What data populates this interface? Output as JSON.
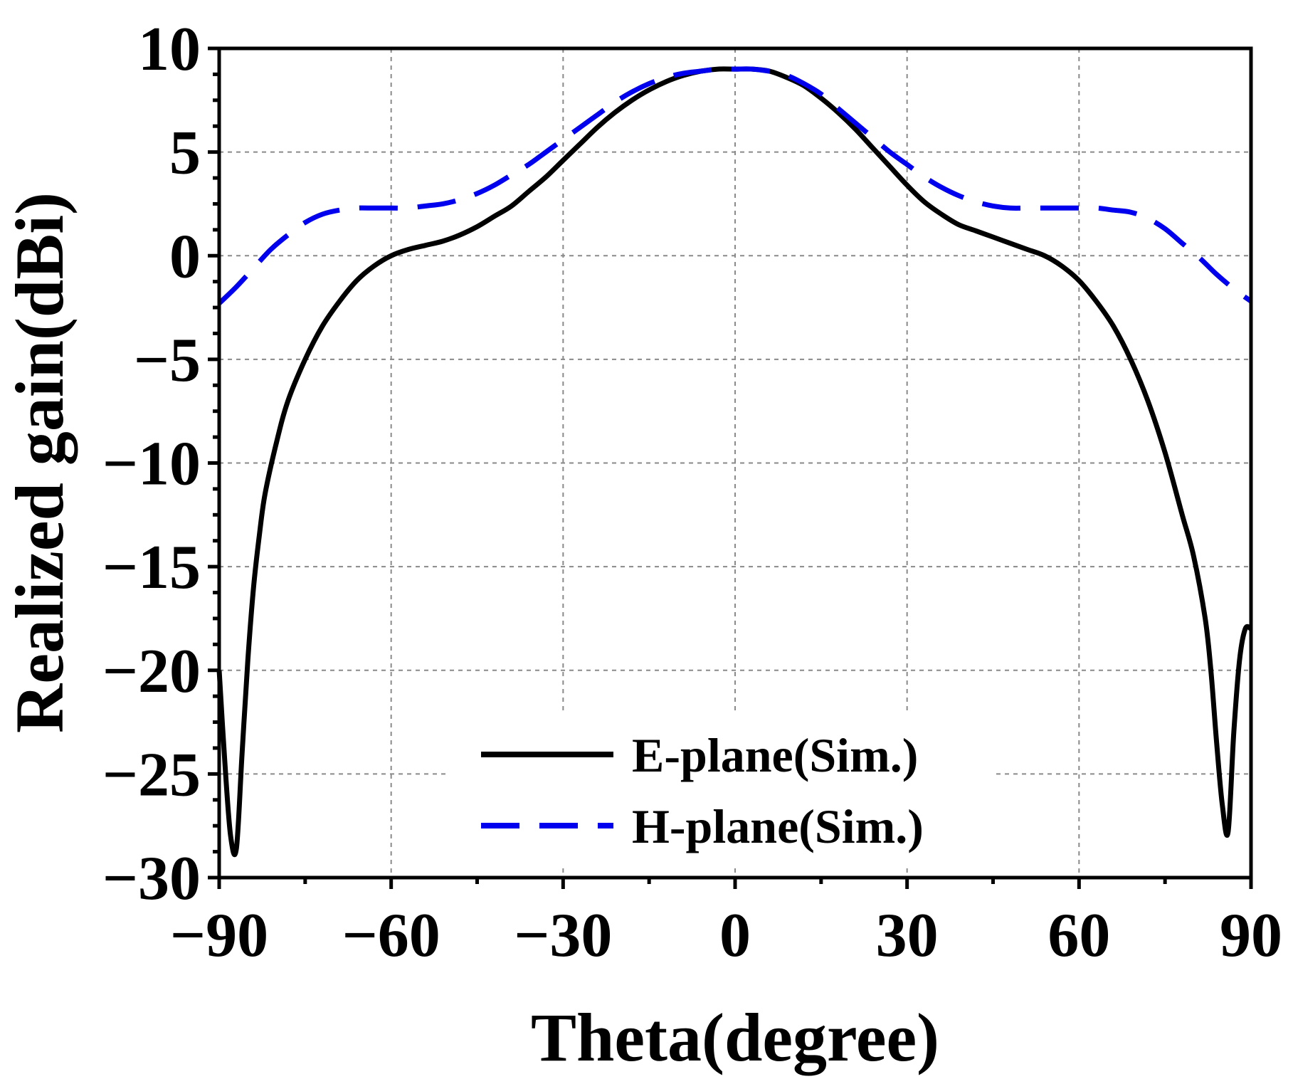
{
  "chart_data": {
    "type": "line",
    "title": "",
    "xlabel": "Theta(degree)",
    "ylabel": "Realized gain(dBi)",
    "xlim": [
      -90,
      90
    ],
    "ylim": [
      -30,
      10
    ],
    "xticks": [
      -90,
      -60,
      -30,
      0,
      30,
      60,
      90
    ],
    "yticks": [
      -30,
      -25,
      -20,
      -15,
      -10,
      -5,
      0,
      5,
      10
    ],
    "xtick_labels": [
      "−90",
      "−60",
      "−30",
      "0",
      "30",
      "60",
      "90"
    ],
    "ytick_labels": [
      "−30",
      "−25",
      "−20",
      "−15",
      "−10",
      "−5",
      "0",
      "5",
      "10"
    ],
    "grid": true,
    "legend_position": "bottom-center",
    "series": [
      {
        "name": "E-plane(Sim.)",
        "color": "#000000",
        "style": "solid",
        "x": [
          -90,
          -89,
          -88,
          -87,
          -86,
          -85,
          -84,
          -83,
          -82,
          -80,
          -78,
          -75,
          -72,
          -69,
          -66,
          -63,
          -60,
          -57,
          -54,
          -51,
          -48,
          -45,
          -42,
          -39,
          -36,
          -33,
          -30,
          -27,
          -24,
          -21,
          -18,
          -15,
          -12,
          -9,
          -6,
          -3,
          0,
          3,
          6,
          9,
          12,
          15,
          18,
          21,
          24,
          27,
          30,
          33,
          36,
          39,
          42,
          45,
          48,
          51,
          54,
          57,
          60,
          63,
          66,
          69,
          72,
          75,
          78,
          80,
          82,
          83,
          84,
          85,
          86,
          87,
          88,
          89,
          90
        ],
        "values": [
          -20.0,
          -24.5,
          -28.0,
          -28.6,
          -24.0,
          -19.5,
          -16.0,
          -13.5,
          -11.5,
          -9.0,
          -7.0,
          -5.0,
          -3.4,
          -2.2,
          -1.2,
          -0.5,
          0.0,
          0.3,
          0.5,
          0.7,
          1.0,
          1.4,
          1.9,
          2.4,
          3.1,
          3.8,
          4.6,
          5.4,
          6.2,
          6.9,
          7.5,
          8.0,
          8.4,
          8.7,
          8.9,
          9.0,
          9.0,
          9.0,
          8.9,
          8.6,
          8.2,
          7.6,
          6.9,
          6.1,
          5.2,
          4.3,
          3.4,
          2.6,
          2.0,
          1.5,
          1.2,
          0.9,
          0.6,
          0.3,
          0.0,
          -0.5,
          -1.2,
          -2.2,
          -3.4,
          -5.0,
          -7.0,
          -9.5,
          -12.5,
          -14.5,
          -17.5,
          -20.0,
          -23.5,
          -26.5,
          -27.8,
          -23.0,
          -19.5,
          -18.0,
          -18.0
        ]
      },
      {
        "name": "H-plane(Sim.)",
        "color": "#0000ee",
        "style": "dashed",
        "x": [
          -90,
          -87,
          -84,
          -81,
          -78,
          -75,
          -72,
          -69,
          -66,
          -63,
          -60,
          -57,
          -54,
          -51,
          -48,
          -45,
          -42,
          -39,
          -36,
          -33,
          -30,
          -27,
          -24,
          -21,
          -18,
          -15,
          -12,
          -9,
          -6,
          -3,
          0,
          3,
          6,
          9,
          12,
          15,
          18,
          21,
          24,
          27,
          30,
          33,
          36,
          39,
          42,
          45,
          48,
          51,
          54,
          57,
          60,
          63,
          66,
          69,
          72,
          75,
          78,
          81,
          84,
          87,
          90
        ],
        "values": [
          -2.3,
          -1.5,
          -0.6,
          0.3,
          1.0,
          1.6,
          2.0,
          2.2,
          2.3,
          2.3,
          2.3,
          2.3,
          2.4,
          2.5,
          2.7,
          3.0,
          3.4,
          3.9,
          4.4,
          5.0,
          5.6,
          6.2,
          6.8,
          7.4,
          7.9,
          8.3,
          8.6,
          8.8,
          8.9,
          9.0,
          9.0,
          9.0,
          8.9,
          8.7,
          8.3,
          7.8,
          7.1,
          6.4,
          5.7,
          5.0,
          4.4,
          3.8,
          3.3,
          2.9,
          2.6,
          2.4,
          2.3,
          2.3,
          2.3,
          2.3,
          2.3,
          2.3,
          2.2,
          2.1,
          1.8,
          1.3,
          0.6,
          -0.1,
          -0.9,
          -1.6,
          -2.2
        ]
      }
    ]
  }
}
